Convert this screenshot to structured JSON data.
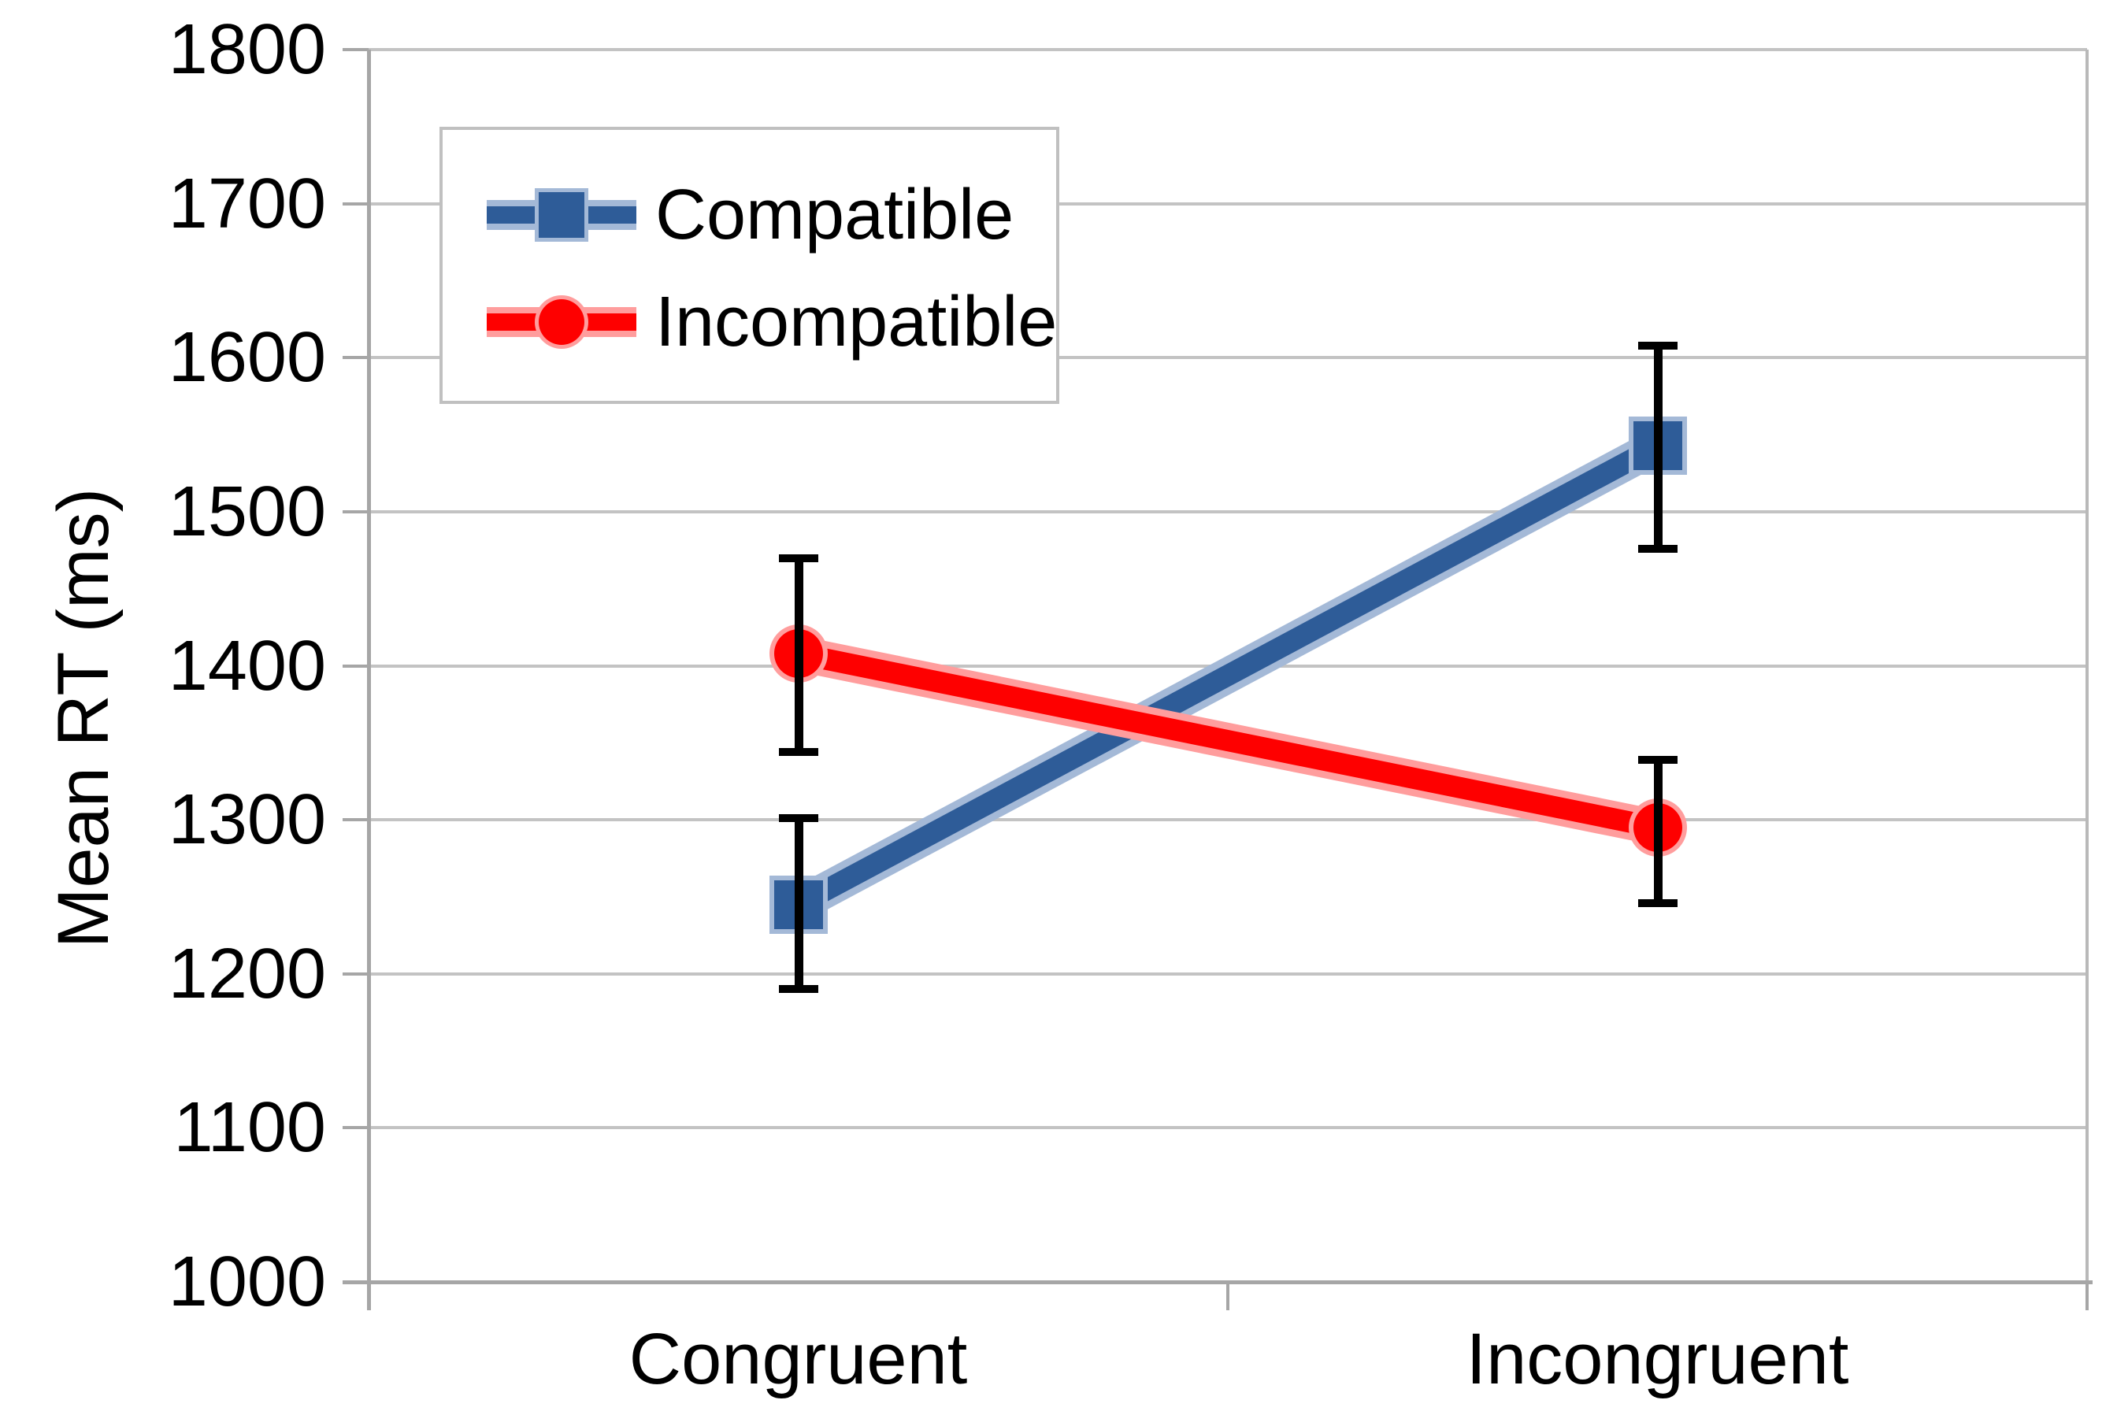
{
  "chart_data": {
    "type": "line",
    "title": "",
    "xlabel": "",
    "ylabel": "Mean RT (ms)",
    "categories": [
      "Congruent",
      "Incongruent"
    ],
    "y_ticks": [
      1800,
      1700,
      1600,
      1500,
      1400,
      1300,
      1200,
      1100,
      1000
    ],
    "ylim": [
      1000,
      1800
    ],
    "grid": "horizontal-only",
    "legend_position": "inside-top-left",
    "error_bars": true,
    "series": [
      {
        "name": "Compatible",
        "marker": "square",
        "color": "#2e5c98",
        "halo_color": "#a4b9d7",
        "values": [
          1245,
          1543
        ],
        "error_low": [
          1190,
          1476
        ],
        "error_high": [
          1301,
          1608
        ]
      },
      {
        "name": "Incompatible",
        "marker": "circle",
        "color": "#fe0000",
        "halo_color": "#ff9d9d",
        "values": [
          1408,
          1295
        ],
        "error_low": [
          1344,
          1246
        ],
        "error_high": [
          1470,
          1339
        ]
      }
    ],
    "error_bar_color": "#000000",
    "colors": {
      "gridline": "#c3c3c3",
      "axis_line": "#a6a6a6",
      "plot_right_border": "#b9b9b9",
      "legend_border": "#c0c0c0",
      "text": "#000000"
    }
  }
}
